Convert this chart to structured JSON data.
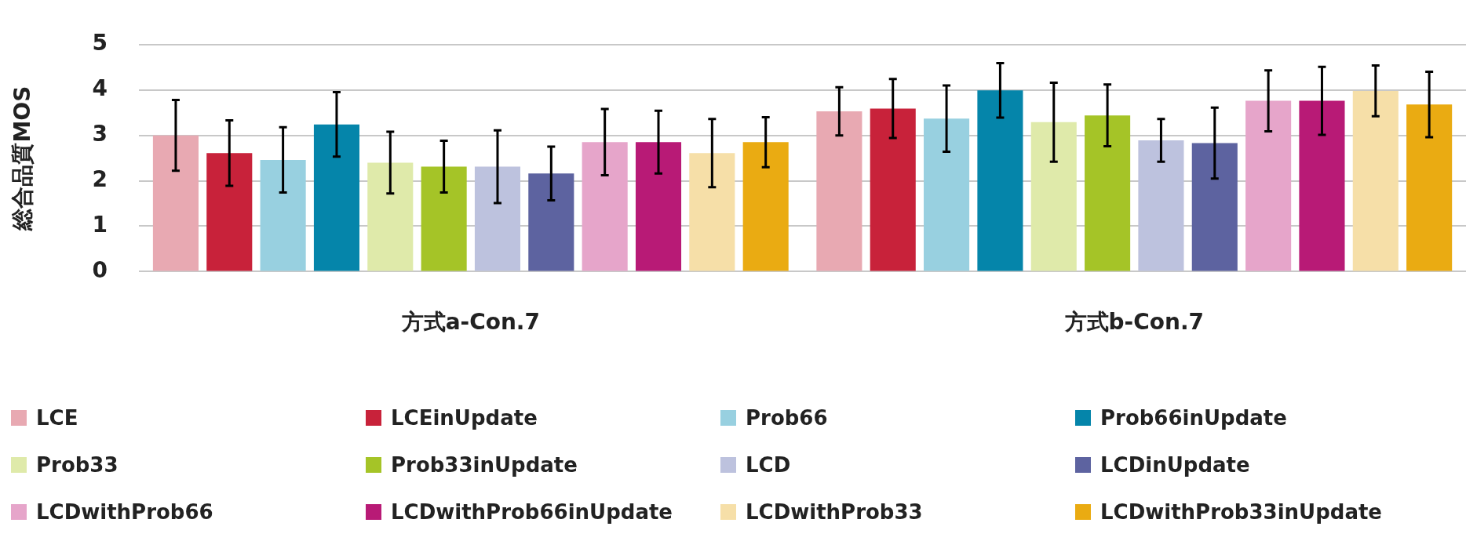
{
  "chart_data": {
    "type": "bar",
    "ylabel": "総合品質MOS",
    "categories": [
      "方式a-Con.7",
      "方式b-Con.7"
    ],
    "ylim": [
      0,
      5
    ],
    "yticks": [
      0,
      1,
      2,
      3,
      4,
      5
    ],
    "grid": "y",
    "legend": "bottom",
    "series": [
      {
        "name": "LCE",
        "color": "#e8a9b2",
        "values": [
          3.0,
          3.53
        ],
        "errors": [
          0.78,
          0.53
        ]
      },
      {
        "name": "LCEinUpdate",
        "color": "#c8223a",
        "values": [
          2.61,
          3.59
        ],
        "errors": [
          0.72,
          0.65
        ]
      },
      {
        "name": "Prob66",
        "color": "#98d0e0",
        "values": [
          2.46,
          3.37
        ],
        "errors": [
          0.72,
          0.73
        ]
      },
      {
        "name": "Prob66inUpdate",
        "color": "#0585aa",
        "values": [
          3.24,
          3.99
        ],
        "errors": [
          0.71,
          0.6
        ]
      },
      {
        "name": "Prob33",
        "color": "#dfeaaa",
        "values": [
          2.4,
          3.29
        ],
        "errors": [
          0.68,
          0.87
        ]
      },
      {
        "name": "Prob33inUpdate",
        "color": "#a5c427",
        "values": [
          2.31,
          3.44
        ],
        "errors": [
          0.57,
          0.68
        ]
      },
      {
        "name": "LCD",
        "color": "#bdc2de",
        "values": [
          2.31,
          2.89
        ],
        "errors": [
          0.8,
          0.47
        ]
      },
      {
        "name": "LCDinUpdate",
        "color": "#5d63a0",
        "values": [
          2.16,
          2.83
        ],
        "errors": [
          0.59,
          0.78
        ]
      },
      {
        "name": "LCDwithProb66",
        "color": "#e6a5ca",
        "values": [
          2.85,
          3.76
        ],
        "errors": [
          0.73,
          0.67
        ]
      },
      {
        "name": "LCDwithProb66inUpdate",
        "color": "#b81a76",
        "values": [
          2.85,
          3.76
        ],
        "errors": [
          0.69,
          0.75
        ]
      },
      {
        "name": "LCDwithProb33",
        "color": "#f6dfa8",
        "values": [
          2.61,
          3.98
        ],
        "errors": [
          0.75,
          0.56
        ]
      },
      {
        "name": "LCDwithProb33inUpdate",
        "color": "#eaab12",
        "values": [
          2.85,
          3.68
        ],
        "errors": [
          0.55,
          0.72
        ]
      }
    ]
  }
}
